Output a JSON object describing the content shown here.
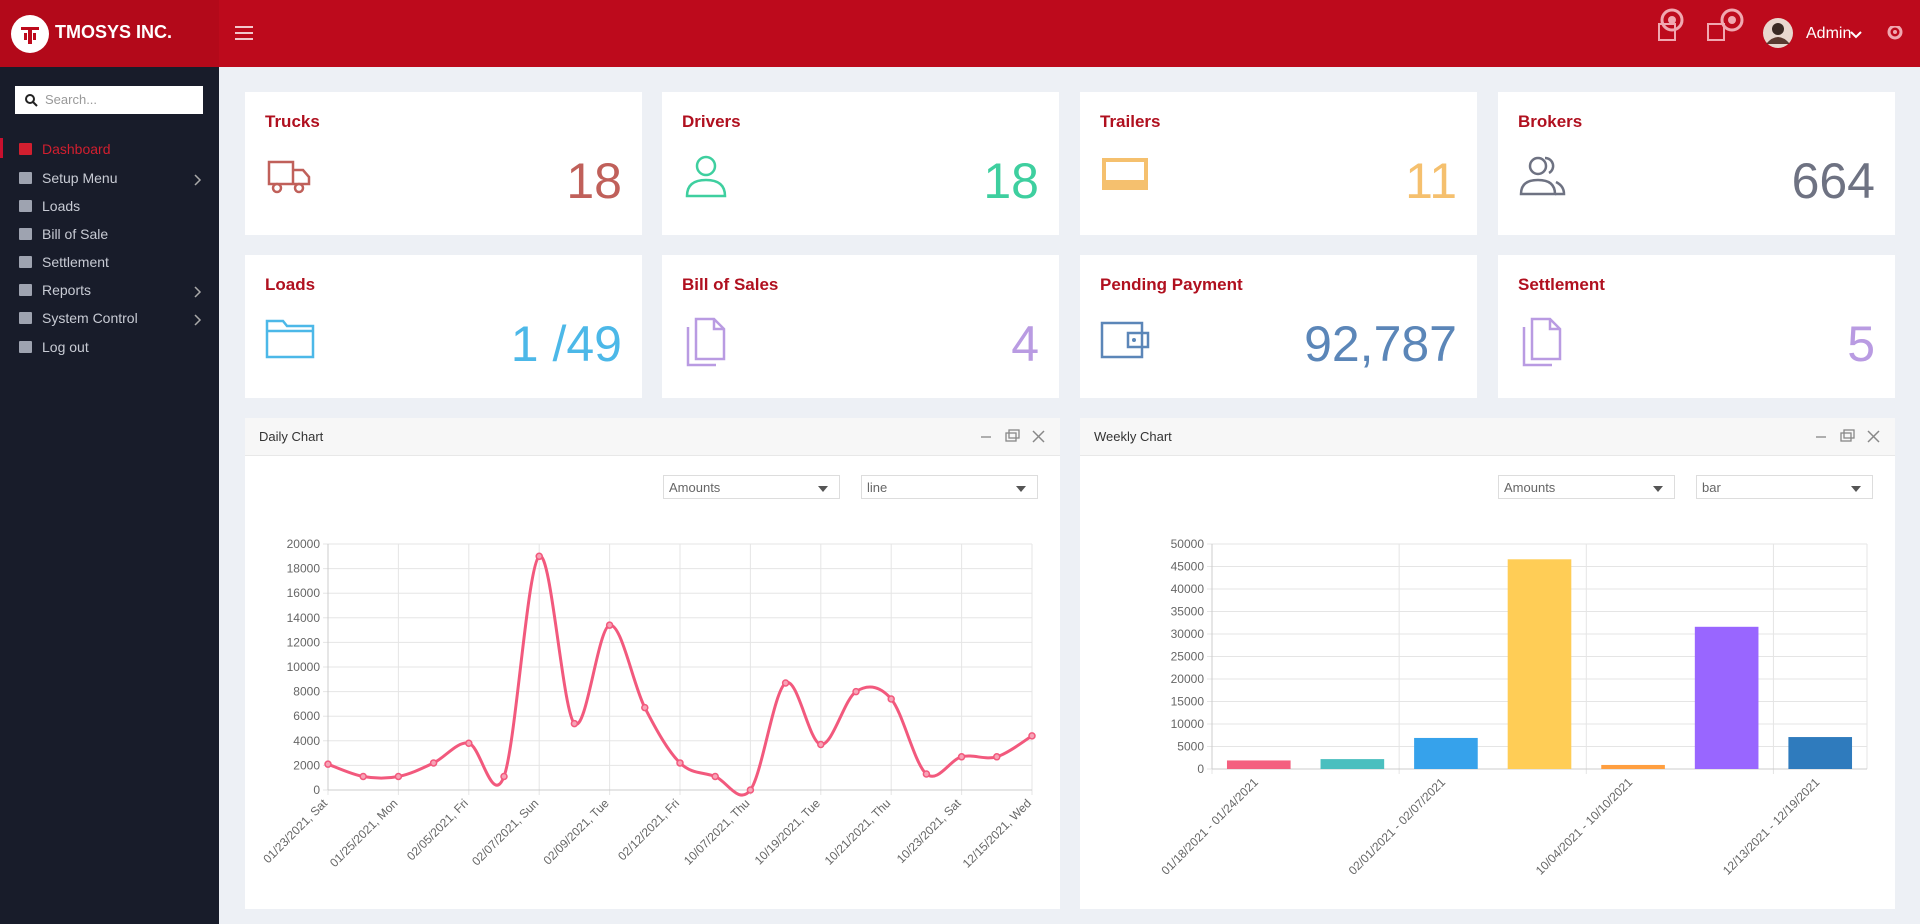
{
  "header": {
    "brand": "TMOSYS INC.",
    "user": "Admin"
  },
  "sidebar": {
    "search_placeholder": "Search...",
    "menu": [
      "Dashboard",
      "Setup Menu",
      "Loads",
      "Bill of Sale",
      "Settlement",
      "Reports",
      "System Control",
      "Log out"
    ]
  },
  "cards": [
    {
      "title": "Trucks",
      "value": "18"
    },
    {
      "title": "Drivers",
      "value": "18"
    },
    {
      "title": "Trailers",
      "value": "11"
    },
    {
      "title": "Brokers",
      "value": "664"
    },
    {
      "title": "Loads",
      "value": "1 /49"
    },
    {
      "title": "Bill of Sales",
      "value": "4"
    },
    {
      "title": "Pending Payment",
      "value": "92,787"
    },
    {
      "title": "Settlement",
      "value": "5"
    }
  ],
  "panels": [
    {
      "title": "Daily Chart",
      "selects": [
        "Amounts",
        "line"
      ]
    },
    {
      "title": "Weekly Chart",
      "selects": [
        "Amounts",
        "bar"
      ]
    }
  ],
  "chart_data": [
    {
      "type": "line",
      "color": "#f2597d",
      "categories": [
        "01/23/2021, Sat",
        null,
        "01/25/2021, Mon",
        null,
        "02/05/2021, Fri",
        null,
        "02/07/2021, Sun",
        null,
        "02/09/2021, Tue",
        null,
        "02/12/2021, Fri",
        null,
        "10/07/2021, Thu",
        null,
        "10/19/2021, Tue",
        null,
        "10/21/2021, Thu",
        null,
        "10/23/2021, Sat",
        null,
        "12/15/2021, Wed"
      ],
      "values": [
        2100,
        1100,
        1100,
        2200,
        3800,
        1100,
        19000,
        5400,
        13400,
        6700,
        2200,
        1100,
        0,
        8700,
        3700,
        8000,
        7400,
        1300,
        2700,
        2700,
        4400
      ],
      "ylim": [
        0,
        20000
      ],
      "yticks": [
        0,
        2000,
        4000,
        6000,
        8000,
        10000,
        12000,
        14000,
        16000,
        18000,
        20000
      ],
      "grid": true
    },
    {
      "type": "bar",
      "categories": [
        "01/18/2021 - 01/24/2021",
        null,
        "02/01/2021 - 02/07/2021",
        null,
        "10/04/2021 - 10/10/2021",
        null,
        "12/13/2021 - 12/19/2021"
      ],
      "values": [
        1900,
        2200,
        6900,
        46600,
        900,
        31600,
        7100
      ],
      "colors": [
        "#f4607f",
        "#4bbfbf",
        "#36a2eb",
        "#ffcd56",
        "#ff9f40",
        "#9966ff",
        "#2f7bbd"
      ],
      "ylim": [
        0,
        50000
      ],
      "yticks": [
        0,
        5000,
        10000,
        15000,
        20000,
        25000,
        30000,
        35000,
        40000,
        45000,
        50000
      ],
      "grid": true
    }
  ]
}
